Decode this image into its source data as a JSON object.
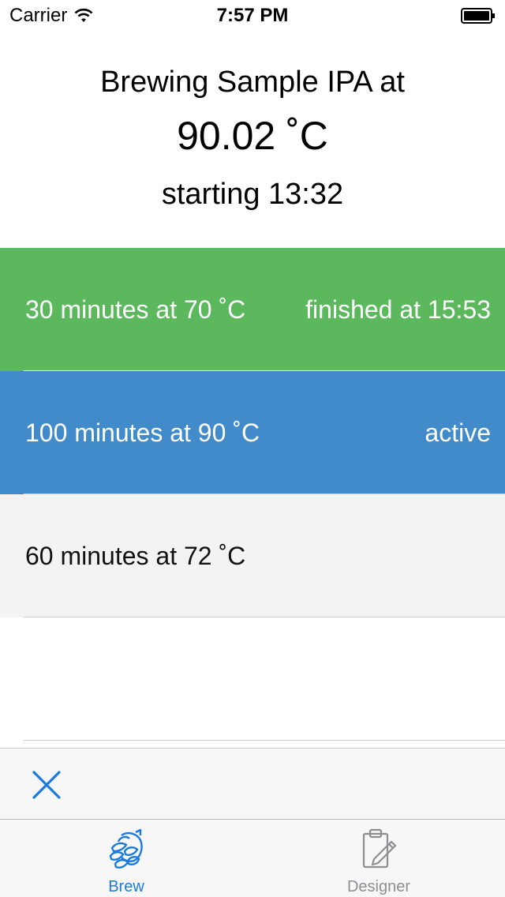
{
  "status_bar": {
    "carrier": "Carrier",
    "time": "7:57 PM"
  },
  "header": {
    "title": "Brewing Sample IPA at",
    "temperature": "90.02 ˚C",
    "starting": "starting 13:32"
  },
  "steps": [
    {
      "label": "30 minutes at 70 ˚C",
      "status": "finished at 15:53",
      "state": "finished",
      "color": "#5cb85c"
    },
    {
      "label": "100 minutes at 90 ˚C",
      "status": "active",
      "state": "active",
      "color": "#428bca"
    },
    {
      "label": "60 minutes at 72 ˚C",
      "status": "",
      "state": "pending",
      "color": "#f3f3f3"
    }
  ],
  "toolbar": {
    "cancel_icon": "close-icon",
    "accent": "#1a7ae0"
  },
  "tabbar": {
    "tabs": [
      {
        "label": "Brew",
        "icon": "hop-icon",
        "selected": true
      },
      {
        "label": "Designer",
        "icon": "clipboard-pencil-icon",
        "selected": false
      }
    ]
  }
}
